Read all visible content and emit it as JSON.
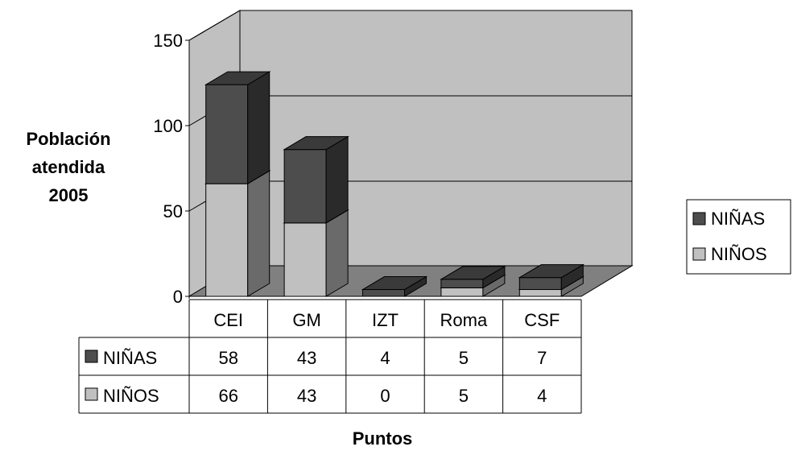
{
  "chart_data": {
    "type": "bar",
    "stacked": true,
    "three_d": true,
    "categories": [
      "CEI",
      "GM",
      "IZT",
      "Roma",
      "CSF"
    ],
    "series": [
      {
        "name": "NIÑOS",
        "values": [
          66,
          43,
          0,
          5,
          4
        ],
        "color": "#c0c0c0"
      },
      {
        "name": "NIÑAS",
        "values": [
          58,
          43,
          4,
          5,
          7
        ],
        "color": "#4d4d4d"
      }
    ],
    "xlabel": "Puntos",
    "ylabel": [
      "Población",
      "atendida",
      "2005"
    ],
    "yticks": [
      "0",
      "50",
      "100",
      "150"
    ],
    "ylim": [
      0,
      150
    ],
    "gridlines": true,
    "legend_position": "right",
    "data_table": true,
    "colors": {
      "wall": "#c0c0c0",
      "floor": "#808080"
    }
  }
}
